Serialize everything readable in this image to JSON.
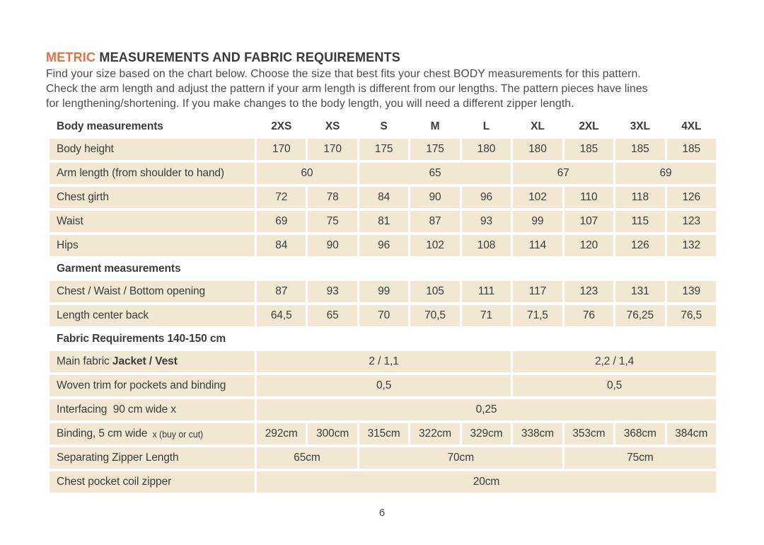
{
  "page": {
    "title_accent": "METRIC",
    "title_rest": " MEASUREMENTS AND FABRIC REQUIREMENTS",
    "intro_lines": [
      "Find your size based on the chart below. Choose the size that best fits your chest BODY measurements for this pattern.",
      "Check the arm length and adjust the pattern if your arm length is different from our lengths. The pattern pieces have lines",
      "for lengthening/shortening. If you make changes to the body length, you will need a different zipper length."
    ],
    "page_number": "6"
  },
  "colors": {
    "accent_orange": "#e8703e",
    "cell_beige": "#f2e7d3",
    "text_dark": "#3c3c3c"
  },
  "table": {
    "header_label": "Body measurements",
    "sizes": [
      "2XS",
      "XS",
      "S",
      "M",
      "L",
      "XL",
      "2XL",
      "3XL",
      "4XL"
    ],
    "rows": [
      {
        "kind": "data",
        "label": [
          {
            "text": "Body height"
          }
        ],
        "cells": [
          {
            "text": "170",
            "span": 1
          },
          {
            "text": "170",
            "span": 1
          },
          {
            "text": "175",
            "span": 1
          },
          {
            "text": "175",
            "span": 1
          },
          {
            "text": "180",
            "span": 1
          },
          {
            "text": "180",
            "span": 1
          },
          {
            "text": "185",
            "span": 1
          },
          {
            "text": "185",
            "span": 1
          },
          {
            "text": "185",
            "span": 1
          }
        ]
      },
      {
        "kind": "data",
        "label": [
          {
            "text": "Arm length (from shoulder to hand)"
          }
        ],
        "cells": [
          {
            "text": "60",
            "span": 2
          },
          {
            "text": "65",
            "span": 3
          },
          {
            "text": "67",
            "span": 2
          },
          {
            "text": "69",
            "span": 2
          }
        ]
      },
      {
        "kind": "data",
        "label": [
          {
            "text": "Chest girth"
          }
        ],
        "cells": [
          {
            "text": "72",
            "span": 1
          },
          {
            "text": "78",
            "span": 1
          },
          {
            "text": "84",
            "span": 1
          },
          {
            "text": "90",
            "span": 1
          },
          {
            "text": "96",
            "span": 1
          },
          {
            "text": "102",
            "span": 1
          },
          {
            "text": "110",
            "span": 1
          },
          {
            "text": "118",
            "span": 1
          },
          {
            "text": "126",
            "span": 1
          }
        ]
      },
      {
        "kind": "data",
        "label": [
          {
            "text": "Waist"
          }
        ],
        "cells": [
          {
            "text": "69",
            "span": 1
          },
          {
            "text": "75",
            "span": 1
          },
          {
            "text": "81",
            "span": 1
          },
          {
            "text": "87",
            "span": 1
          },
          {
            "text": "93",
            "span": 1
          },
          {
            "text": "99",
            "span": 1
          },
          {
            "text": "107",
            "span": 1
          },
          {
            "text": "115",
            "span": 1
          },
          {
            "text": "123",
            "span": 1
          }
        ]
      },
      {
        "kind": "data",
        "label": [
          {
            "text": "Hips"
          }
        ],
        "cells": [
          {
            "text": "84",
            "span": 1
          },
          {
            "text": "90",
            "span": 1
          },
          {
            "text": "96",
            "span": 1
          },
          {
            "text": "102",
            "span": 1
          },
          {
            "text": "108",
            "span": 1
          },
          {
            "text": "114",
            "span": 1
          },
          {
            "text": "120",
            "span": 1
          },
          {
            "text": "126",
            "span": 1
          },
          {
            "text": "132",
            "span": 1
          }
        ]
      },
      {
        "kind": "section",
        "label": [
          {
            "text": "Garment measurements"
          }
        ]
      },
      {
        "kind": "data",
        "label": [
          {
            "text": "Chest / Waist / Bottom opening"
          }
        ],
        "cells": [
          {
            "text": "87",
            "span": 1
          },
          {
            "text": "93",
            "span": 1
          },
          {
            "text": "99",
            "span": 1
          },
          {
            "text": "105",
            "span": 1
          },
          {
            "text": "111",
            "span": 1
          },
          {
            "text": "117",
            "span": 1
          },
          {
            "text": "123",
            "span": 1
          },
          {
            "text": "131",
            "span": 1
          },
          {
            "text": "139",
            "span": 1
          }
        ]
      },
      {
        "kind": "data",
        "label": [
          {
            "text": "Length center back"
          }
        ],
        "cells": [
          {
            "text": "64,5",
            "span": 1
          },
          {
            "text": "65",
            "span": 1
          },
          {
            "text": "70",
            "span": 1
          },
          {
            "text": "70,5",
            "span": 1
          },
          {
            "text": "71",
            "span": 1
          },
          {
            "text": "71,5",
            "span": 1
          },
          {
            "text": "76",
            "span": 1
          },
          {
            "text": "76,25",
            "span": 1
          },
          {
            "text": "76,5",
            "span": 1
          }
        ]
      },
      {
        "kind": "section",
        "label": [
          {
            "text": "Fabric Requirements 140-150 cm"
          }
        ]
      },
      {
        "kind": "data",
        "label": [
          {
            "text": "Main fabric "
          },
          {
            "text": "Jacket / Vest",
            "style": "bold"
          }
        ],
        "cells": [
          {
            "text": "2 / 1,1",
            "span": 5
          },
          {
            "text": "2,2 / 1,4",
            "span": 4
          }
        ]
      },
      {
        "kind": "data",
        "label": [
          {
            "text": "Woven trim for pockets and binding"
          }
        ],
        "cells": [
          {
            "text": "0,5",
            "span": 5
          },
          {
            "text": "0,5",
            "span": 4
          }
        ]
      },
      {
        "kind": "data",
        "label": [
          {
            "text": "Interfacing  90 cm wide x"
          }
        ],
        "cells": [
          {
            "text": "0,25",
            "span": 9
          }
        ]
      },
      {
        "kind": "data",
        "label": [
          {
            "text": "Binding, 5 cm wide "
          },
          {
            "text": "x (buy or cut)",
            "style": "small"
          }
        ],
        "cells": [
          {
            "text": "292cm",
            "span": 1
          },
          {
            "text": "300cm",
            "span": 1
          },
          {
            "text": "315cm",
            "span": 1
          },
          {
            "text": "322cm",
            "span": 1
          },
          {
            "text": "329cm",
            "span": 1
          },
          {
            "text": "338cm",
            "span": 1
          },
          {
            "text": "353cm",
            "span": 1
          },
          {
            "text": "368cm",
            "span": 1
          },
          {
            "text": "384cm",
            "span": 1
          }
        ]
      },
      {
        "kind": "data",
        "label": [
          {
            "text": "Separating Zipper Length"
          }
        ],
        "cells": [
          {
            "text": "65cm",
            "span": 2
          },
          {
            "text": "70cm",
            "span": 4
          },
          {
            "text": "75cm",
            "span": 3
          }
        ]
      },
      {
        "kind": "data",
        "label": [
          {
            "text": "Chest pocket coil zipper"
          }
        ],
        "cells": [
          {
            "text": "20cm",
            "span": 9
          }
        ]
      }
    ]
  }
}
